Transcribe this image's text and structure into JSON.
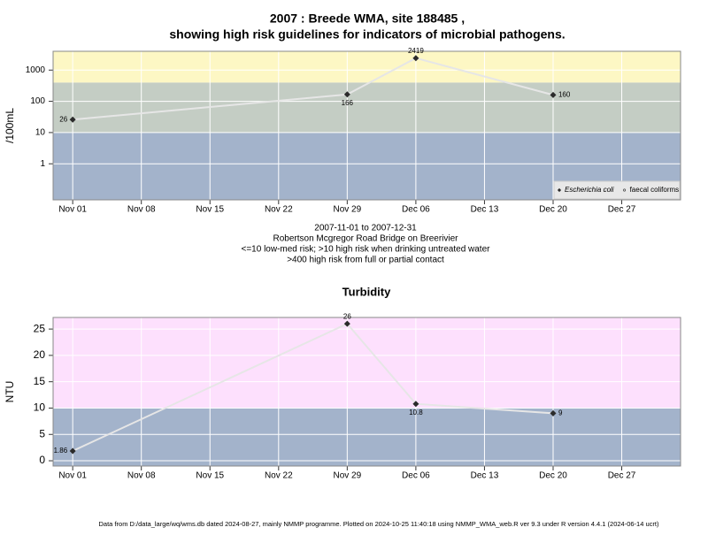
{
  "title": "2007 : Breede WMA, site 188485 ,",
  "subtitle": "showing high risk guidelines for indicators of microbial pathogens.",
  "notes": [
    "2007-11-01 to 2007-12-31",
    "Robertson Mcgregor Road Bridge on Breerivier",
    "<=10 low-med risk; >10 high risk when drinking untreated water",
    ">400 high risk from full or partial contact"
  ],
  "footer": "Data from D:/data_large/wq/wms.db dated 2024-08-27, mainly NMMP programme. Plotted on 2024-10-25 11:40:18 using NMMP_WMA_web.R ver 9.3 under R version 4.4.1 (2024-06-14 ucrt)",
  "chart_data": [
    {
      "type": "line",
      "ylabel": "/100mL",
      "ylog": true,
      "grid": true,
      "legend": "bottom-right",
      "line_color": "#e6e6e6",
      "x": [
        "2007-11-01",
        "2007-11-29",
        "2007-12-06",
        "2007-12-20"
      ],
      "xlim": [
        "2007-10-30",
        "2008-01-02"
      ],
      "xticks": [
        {
          "value": "2007-11-01",
          "label": "Nov 01"
        },
        {
          "value": "2007-11-08",
          "label": "Nov 08"
        },
        {
          "value": "2007-11-15",
          "label": "Nov 15"
        },
        {
          "value": "2007-11-22",
          "label": "Nov 22"
        },
        {
          "value": "2007-11-29",
          "label": "Nov 29"
        },
        {
          "value": "2007-12-06",
          "label": "Dec 06"
        },
        {
          "value": "2007-12-13",
          "label": "Dec 13"
        },
        {
          "value": "2007-12-20",
          "label": "Dec 20"
        },
        {
          "value": "2007-12-27",
          "label": "Dec 27"
        }
      ],
      "ylim": [
        0.07,
        4000
      ],
      "yticks": [
        1,
        10,
        100,
        1000
      ],
      "bands": [
        {
          "to": 10,
          "color": "#a3b3cb"
        },
        {
          "from": 10,
          "to": 400,
          "color": "#c4cdc4"
        },
        {
          "from": 400,
          "color": "#fdf7c4"
        }
      ],
      "series": [
        {
          "name": "Escherichia coli",
          "color": "#2b2b2b",
          "marker": "diamond",
          "italic": true,
          "values": [
            26,
            166,
            2419,
            160
          ]
        },
        {
          "name": "faecal coliforms",
          "color": "#2b2b2b",
          "marker": "circle",
          "values": [
            null,
            null,
            null,
            null
          ]
        }
      ]
    },
    {
      "type": "line",
      "title": "Turbidity",
      "ylabel": "NTU",
      "grid": true,
      "line_color": "#e6e6e6",
      "x": [
        "2007-11-01",
        "2007-11-29",
        "2007-12-06",
        "2007-12-20"
      ],
      "xlim": [
        "2007-10-30",
        "2008-01-02"
      ],
      "xticks": [
        {
          "value": "2007-11-01",
          "label": "Nov 01"
        },
        {
          "value": "2007-11-08",
          "label": "Nov 08"
        },
        {
          "value": "2007-11-15",
          "label": "Nov 15"
        },
        {
          "value": "2007-11-22",
          "label": "Nov 22"
        },
        {
          "value": "2007-11-29",
          "label": "Nov 29"
        },
        {
          "value": "2007-12-06",
          "label": "Dec 06"
        },
        {
          "value": "2007-12-13",
          "label": "Dec 13"
        },
        {
          "value": "2007-12-20",
          "label": "Dec 20"
        },
        {
          "value": "2007-12-27",
          "label": "Dec 27"
        }
      ],
      "ylim": [
        -1,
        27.2
      ],
      "yticks": [
        0,
        5,
        10,
        15,
        20,
        25
      ],
      "bands": [
        {
          "to": 10,
          "color": "#a3b3cb"
        },
        {
          "from": 10,
          "color": "#fde0fd"
        }
      ],
      "series": [
        {
          "name": "Turbidity",
          "color": "#2b2b2b",
          "marker": "diamond",
          "values": [
            1.86,
            26,
            10.8,
            9
          ]
        }
      ]
    }
  ]
}
